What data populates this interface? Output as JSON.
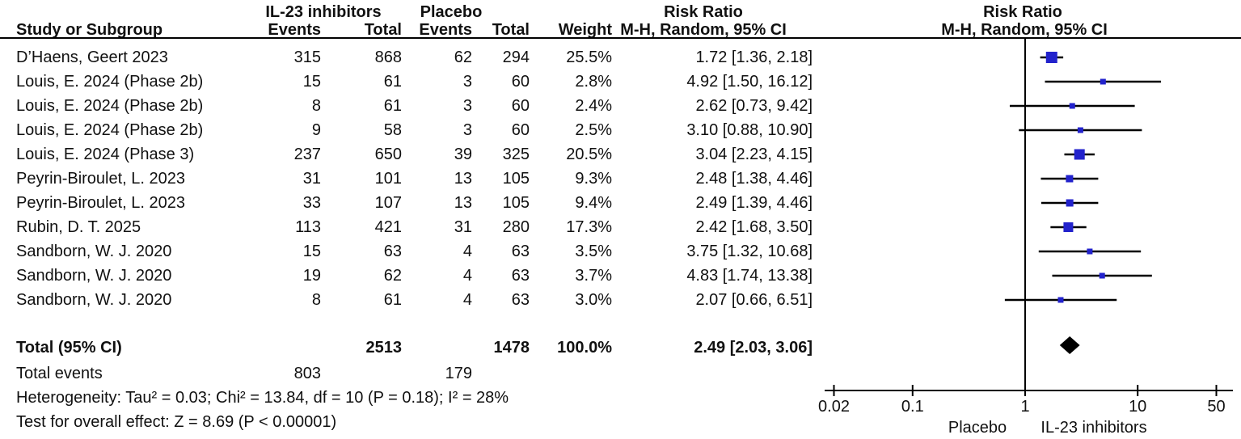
{
  "header": {
    "group1": "IL-23 inhibitors",
    "group2": "Placebo",
    "col_study": "Study or Subgroup",
    "col_events1": "Events",
    "col_total1": "Total",
    "col_events2": "Events",
    "col_total2": "Total",
    "col_weight": "Weight",
    "rr_text_title": "Risk Ratio",
    "rr_text_sub": "M-H, Random, 95% CI",
    "rr_plot_title": "Risk Ratio",
    "rr_plot_sub": "M-H, Random, 95% CI"
  },
  "chart_data": {
    "type": "forest",
    "scale": "log10",
    "xlim": [
      0.02,
      50
    ],
    "axis_ticks": [
      "0.02",
      "0.1",
      "1",
      "10",
      "50"
    ],
    "axis_tick_values": [
      0.02,
      0.1,
      1,
      10,
      50
    ],
    "axis_left_label": "Placebo",
    "axis_right_label": "IL-23 inhibitors",
    "marker_color": "#2222CC",
    "line_color": "#000000",
    "studies": [
      {
        "study": "D’Haens, Geert 2023",
        "events1": "315",
        "total1": "868",
        "events2": "62",
        "total2": "294",
        "weight": "25.5%",
        "weight_pct": 25.5,
        "rr": 1.72,
        "ci_lo": 1.36,
        "ci_hi": 2.18,
        "rr_label": "1.72 [1.36, 2.18]"
      },
      {
        "study": "Louis, E. 2024 (Phase 2b)",
        "events1": "15",
        "total1": "61",
        "events2": "3",
        "total2": "60",
        "weight": "2.8%",
        "weight_pct": 2.8,
        "rr": 4.92,
        "ci_lo": 1.5,
        "ci_hi": 16.12,
        "rr_label": "4.92 [1.50, 16.12]"
      },
      {
        "study": "Louis, E. 2024 (Phase 2b)",
        "events1": "8",
        "total1": "61",
        "events2": "3",
        "total2": "60",
        "weight": "2.4%",
        "weight_pct": 2.4,
        "rr": 2.62,
        "ci_lo": 0.73,
        "ci_hi": 9.42,
        "rr_label": "2.62 [0.73, 9.42]"
      },
      {
        "study": "Louis, E. 2024 (Phase 2b)",
        "events1": "9",
        "total1": "58",
        "events2": "3",
        "total2": "60",
        "weight": "2.5%",
        "weight_pct": 2.5,
        "rr": 3.1,
        "ci_lo": 0.88,
        "ci_hi": 10.9,
        "rr_label": "3.10 [0.88, 10.90]"
      },
      {
        "study": "Louis, E. 2024 (Phase 3)",
        "events1": "237",
        "total1": "650",
        "events2": "39",
        "total2": "325",
        "weight": "20.5%",
        "weight_pct": 20.5,
        "rr": 3.04,
        "ci_lo": 2.23,
        "ci_hi": 4.15,
        "rr_label": "3.04 [2.23, 4.15]"
      },
      {
        "study": "Peyrin-Biroulet, L. 2023",
        "events1": "31",
        "total1": "101",
        "events2": "13",
        "total2": "105",
        "weight": "9.3%",
        "weight_pct": 9.3,
        "rr": 2.48,
        "ci_lo": 1.38,
        "ci_hi": 4.46,
        "rr_label": "2.48 [1.38, 4.46]"
      },
      {
        "study": "Peyrin-Biroulet, L. 2023",
        "events1": "33",
        "total1": "107",
        "events2": "13",
        "total2": "105",
        "weight": "9.4%",
        "weight_pct": 9.4,
        "rr": 2.49,
        "ci_lo": 1.39,
        "ci_hi": 4.46,
        "rr_label": "2.49 [1.39, 4.46]"
      },
      {
        "study": "Rubin, D. T. 2025",
        "events1": "113",
        "total1": "421",
        "events2": "31",
        "total2": "280",
        "weight": "17.3%",
        "weight_pct": 17.3,
        "rr": 2.42,
        "ci_lo": 1.68,
        "ci_hi": 3.5,
        "rr_label": "2.42 [1.68, 3.50]"
      },
      {
        "study": "Sandborn, W. J. 2020",
        "events1": "15",
        "total1": "63",
        "events2": "4",
        "total2": "63",
        "weight": "3.5%",
        "weight_pct": 3.5,
        "rr": 3.75,
        "ci_lo": 1.32,
        "ci_hi": 10.68,
        "rr_label": "3.75 [1.32, 10.68]"
      },
      {
        "study": "Sandborn, W. J. 2020",
        "events1": "19",
        "total1": "62",
        "events2": "4",
        "total2": "63",
        "weight": "3.7%",
        "weight_pct": 3.7,
        "rr": 4.83,
        "ci_lo": 1.74,
        "ci_hi": 13.38,
        "rr_label": "4.83 [1.74, 13.38]"
      },
      {
        "study": "Sandborn, W. J. 2020",
        "events1": "8",
        "total1": "61",
        "events2": "4",
        "total2": "63",
        "weight": "3.0%",
        "weight_pct": 3.0,
        "rr": 2.07,
        "ci_lo": 0.66,
        "ci_hi": 6.51,
        "rr_label": "2.07 [0.66, 6.51]"
      }
    ],
    "total": {
      "label": "Total (95% CI)",
      "total1": "2513",
      "total2": "1478",
      "weight": "100.0%",
      "rr": 2.49,
      "ci_lo": 2.03,
      "ci_hi": 3.06,
      "rr_label": "2.49 [2.03, 3.06]"
    },
    "total_events": {
      "label": "Total events",
      "events1": "803",
      "events2": "179"
    },
    "heterogeneity": "Heterogeneity: Tau² = 0.03; Chi² = 13.84, df = 10 (P = 0.18); I² = 28%",
    "overall_effect": "Test for overall effect: Z = 8.69 (P < 0.00001)"
  }
}
